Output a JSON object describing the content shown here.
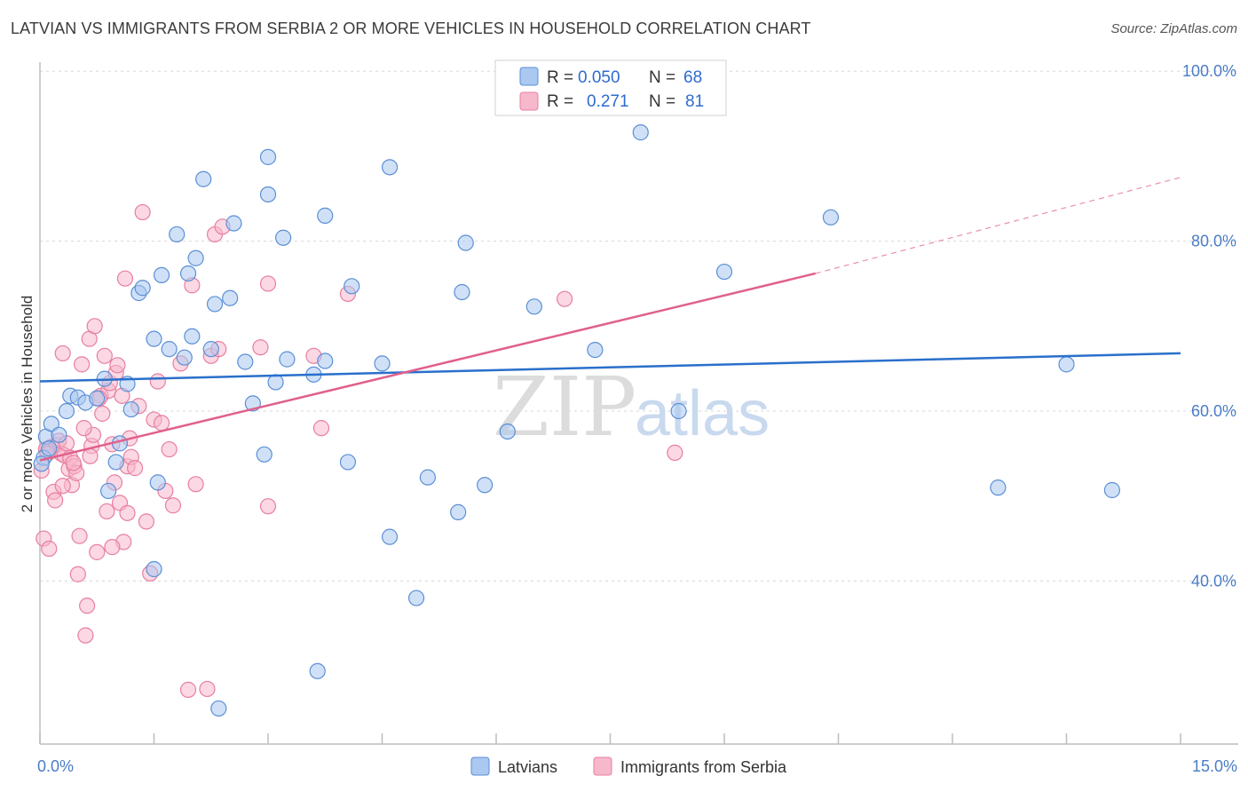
{
  "title": "LATVIAN VS IMMIGRANTS FROM SERBIA 2 OR MORE VEHICLES IN HOUSEHOLD CORRELATION CHART",
  "source": "Source: ZipAtlas.com",
  "watermark": {
    "zip": "ZIP",
    "atlas": "atlas"
  },
  "legend_top": {
    "rows": [
      {
        "r_label": "R =",
        "r_value": "0.050",
        "n_label": "N =",
        "n_value": "68"
      },
      {
        "r_label": "R =",
        "r_value": "0.271",
        "n_label": "N =",
        "n_value": "81"
      }
    ]
  },
  "legend_bottom": {
    "items": [
      {
        "label": "Latvians"
      },
      {
        "label": "Immigrants from Serbia"
      }
    ]
  },
  "colors": {
    "latvians_fill": "#aac8f0",
    "latvians_stroke": "#5b8fd6",
    "latvians_line": "#2a6fcc",
    "serbia_fill": "#f7b8cc",
    "serbia_stroke": "#e87fa0",
    "serbia_line": "#e0608c",
    "grid": "#d8d8d8",
    "tick_label": "#4a7cc7"
  },
  "chart_data": {
    "type": "scatter",
    "title": "LATVIAN VS IMMIGRANTS FROM SERBIA 2 OR MORE VEHICLES IN HOUSEHOLD CORRELATION CHART",
    "xlabel": "",
    "ylabel": "2 or more Vehicles in Household",
    "xlim": [
      0,
      15
    ],
    "ylim": [
      20,
      102
    ],
    "x_tick_labels": [
      "0.0%",
      "15.0%"
    ],
    "y_ticks": [
      40,
      60,
      80,
      100
    ],
    "y_tick_labels": [
      "40.0%",
      "60.0%",
      "80.0%",
      "100.0%"
    ],
    "grid": true,
    "legend_placement": "top-center",
    "series": [
      {
        "name": "Latvians",
        "r": 0.05,
        "n": 68,
        "trend": {
          "x0": 0.0,
          "y0": 63.5,
          "x1": 15.0,
          "y1": 66.8
        },
        "points": [
          [
            0.05,
            54.5
          ],
          [
            0.08,
            57.0
          ],
          [
            0.15,
            58.5
          ],
          [
            0.25,
            57.2
          ],
          [
            0.35,
            60.0
          ],
          [
            0.4,
            61.8
          ],
          [
            0.5,
            61.6
          ],
          [
            0.6,
            61.0
          ],
          [
            0.75,
            61.5
          ],
          [
            0.85,
            63.8
          ],
          [
            0.9,
            50.6
          ],
          [
            1.0,
            54.0
          ],
          [
            1.05,
            56.2
          ],
          [
            1.15,
            63.2
          ],
          [
            1.2,
            60.2
          ],
          [
            1.3,
            73.9
          ],
          [
            1.35,
            74.5
          ],
          [
            1.5,
            41.4
          ],
          [
            1.55,
            51.6
          ],
          [
            1.5,
            68.5
          ],
          [
            1.6,
            76.0
          ],
          [
            1.7,
            67.3
          ],
          [
            1.8,
            80.8
          ],
          [
            1.9,
            66.3
          ],
          [
            1.95,
            76.2
          ],
          [
            2.0,
            68.8
          ],
          [
            2.05,
            78.0
          ],
          [
            2.15,
            87.3
          ],
          [
            2.25,
            67.3
          ],
          [
            2.3,
            72.6
          ],
          [
            2.35,
            25.0
          ],
          [
            2.5,
            73.3
          ],
          [
            2.55,
            82.1
          ],
          [
            2.7,
            65.8
          ],
          [
            2.8,
            60.9
          ],
          [
            2.95,
            54.9
          ],
          [
            3.0,
            89.9
          ],
          [
            3.0,
            85.5
          ],
          [
            3.1,
            63.4
          ],
          [
            3.2,
            80.4
          ],
          [
            3.25,
            66.1
          ],
          [
            3.6,
            64.3
          ],
          [
            3.65,
            29.4
          ],
          [
            3.75,
            65.9
          ],
          [
            3.75,
            83.0
          ],
          [
            4.05,
            54.0
          ],
          [
            4.1,
            74.7
          ],
          [
            4.5,
            65.6
          ],
          [
            4.6,
            45.2
          ],
          [
            4.6,
            88.7
          ],
          [
            4.95,
            38.0
          ],
          [
            5.1,
            52.2
          ],
          [
            5.5,
            48.1
          ],
          [
            5.55,
            74.0
          ],
          [
            5.6,
            79.8
          ],
          [
            5.85,
            51.3
          ],
          [
            6.15,
            57.6
          ],
          [
            6.5,
            72.3
          ],
          [
            7.3,
            67.2
          ],
          [
            7.9,
            92.8
          ],
          [
            8.4,
            60.0
          ],
          [
            9.0,
            76.4
          ],
          [
            10.4,
            82.8
          ],
          [
            12.6,
            51.0
          ],
          [
            13.5,
            65.5
          ],
          [
            14.1,
            50.7
          ],
          [
            0.02,
            53.8
          ],
          [
            0.12,
            55.6
          ]
        ]
      },
      {
        "name": "Immigrants from Serbia",
        "r": 0.271,
        "n": 81,
        "trend": {
          "x0": 0.0,
          "y0": 54.2,
          "x1": 10.2,
          "y1": 76.2
        },
        "trend_dashed": {
          "x0": 10.2,
          "y0": 76.2,
          "x1": 15.0,
          "y1": 87.5
        },
        "points": [
          [
            0.02,
            53.0
          ],
          [
            0.05,
            45.0
          ],
          [
            0.08,
            55.5
          ],
          [
            0.12,
            43.8
          ],
          [
            0.15,
            55.8
          ],
          [
            0.18,
            50.5
          ],
          [
            0.2,
            49.5
          ],
          [
            0.22,
            56.0
          ],
          [
            0.25,
            56.5
          ],
          [
            0.28,
            55.0
          ],
          [
            0.3,
            66.8
          ],
          [
            0.32,
            54.8
          ],
          [
            0.35,
            56.2
          ],
          [
            0.38,
            53.2
          ],
          [
            0.4,
            54.5
          ],
          [
            0.42,
            51.3
          ],
          [
            0.45,
            53.5
          ],
          [
            0.48,
            52.7
          ],
          [
            0.5,
            40.8
          ],
          [
            0.52,
            45.3
          ],
          [
            0.55,
            65.5
          ],
          [
            0.6,
            33.6
          ],
          [
            0.62,
            37.1
          ],
          [
            0.65,
            68.5
          ],
          [
            0.68,
            55.9
          ],
          [
            0.7,
            57.2
          ],
          [
            0.72,
            70.0
          ],
          [
            0.75,
            43.4
          ],
          [
            0.8,
            61.8
          ],
          [
            0.82,
            59.7
          ],
          [
            0.85,
            66.5
          ],
          [
            0.88,
            48.2
          ],
          [
            0.9,
            62.4
          ],
          [
            0.92,
            63.3
          ],
          [
            0.95,
            56.1
          ],
          [
            0.98,
            51.6
          ],
          [
            1.0,
            64.5
          ],
          [
            1.02,
            65.4
          ],
          [
            1.05,
            49.2
          ],
          [
            1.08,
            61.8
          ],
          [
            1.1,
            44.6
          ],
          [
            1.12,
            75.6
          ],
          [
            1.15,
            53.5
          ],
          [
            1.18,
            56.8
          ],
          [
            1.2,
            54.6
          ],
          [
            1.25,
            53.3
          ],
          [
            1.3,
            60.6
          ],
          [
            1.35,
            83.4
          ],
          [
            1.4,
            47.0
          ],
          [
            1.45,
            40.9
          ],
          [
            1.5,
            59.0
          ],
          [
            1.55,
            63.5
          ],
          [
            1.6,
            58.6
          ],
          [
            1.65,
            50.6
          ],
          [
            1.7,
            55.5
          ],
          [
            1.75,
            48.9
          ],
          [
            1.85,
            65.6
          ],
          [
            1.95,
            27.2
          ],
          [
            2.0,
            74.8
          ],
          [
            2.05,
            51.4
          ],
          [
            2.2,
            27.3
          ],
          [
            2.25,
            66.5
          ],
          [
            2.3,
            80.8
          ],
          [
            2.35,
            67.3
          ],
          [
            2.4,
            81.7
          ],
          [
            2.9,
            67.5
          ],
          [
            3.0,
            75.0
          ],
          [
            3.0,
            48.8
          ],
          [
            3.6,
            66.5
          ],
          [
            3.7,
            58.0
          ],
          [
            4.05,
            73.8
          ],
          [
            6.9,
            73.2
          ],
          [
            8.35,
            55.1
          ],
          [
            0.1,
            55.0
          ],
          [
            0.3,
            51.2
          ],
          [
            0.44,
            53.9
          ],
          [
            0.66,
            54.7
          ],
          [
            0.78,
            61.5
          ],
          [
            0.95,
            44.0
          ],
          [
            1.15,
            48.0
          ],
          [
            0.58,
            58.0
          ]
        ]
      }
    ]
  }
}
